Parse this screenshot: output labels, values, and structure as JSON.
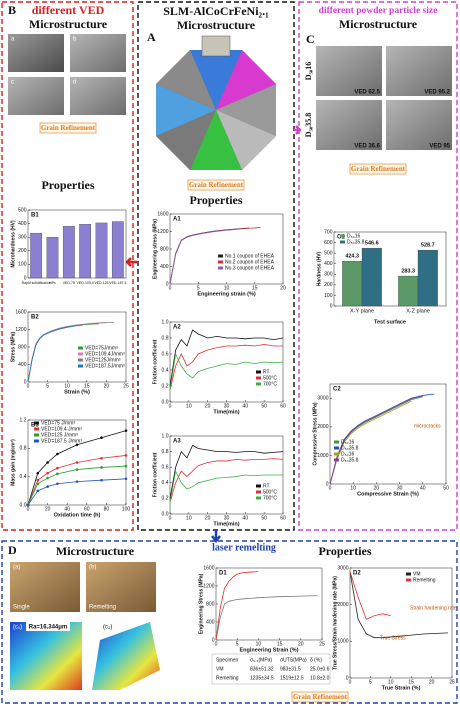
{
  "panels": {
    "B": {
      "label": "B",
      "heading": "different VED",
      "micro": "Microstructure",
      "images": [
        "a",
        "b",
        "c",
        "d"
      ],
      "refinement": "Grain Refinement",
      "properties": "Properties"
    },
    "A": {
      "label": "A",
      "title": "SLM-AlCoCrFeNi₂.₁",
      "micro": "Microstructure",
      "refinement": "Grain Refinement",
      "properties": "Properties"
    },
    "C": {
      "label": "C",
      "heading": "different powder particle size",
      "micro": "Microstructure",
      "rows": [
        "D₅₀16",
        "D₅₀35.8"
      ],
      "veds": [
        "VED 62.5",
        "VED 95.2",
        "VED 36.6",
        "VED 95"
      ],
      "refinement": "Grain Refinement"
    },
    "D": {
      "label": "D",
      "heading": "laser remelting",
      "micro": "Microstructure",
      "properties": "Properties",
      "images": [
        "(a)",
        "(b)",
        "(c₁)",
        "(c₂)"
      ],
      "image_notes": [
        "Single",
        "Remelting"
      ],
      "roughness": "Ra=16.344μm",
      "refinement": "Grain Refinement",
      "table": {
        "header": [
          "Specimen",
          "σ₀.₂(MPa)",
          "σUTS(MPa)",
          "δ (%)"
        ],
        "rows": [
          [
            "VM",
            "836±51.32",
            "983±31.5",
            "25.0±0.6"
          ],
          [
            "Remelting",
            "1235±34.5",
            "1519±12.5",
            "10.8±2.0"
          ]
        ]
      }
    }
  },
  "charts": [
    {
      "label": "B1",
      "type": "bar",
      "ylabel": "Microhardness (HV)",
      "categories": [
        "Rapid solidification",
        "HPs",
        "VED-75",
        "VED-109.4",
        "VED-125",
        "VED-187.5"
      ],
      "series": [
        {
          "color": "#8a7fd0",
          "values": [
            330,
            300,
            380,
            395,
            405,
            415
          ]
        }
      ],
      "ylim": [
        0,
        500
      ],
      "yticks": [
        0,
        100,
        200,
        300,
        400,
        500
      ]
    },
    {
      "label": "B2",
      "type": "line",
      "xlabel": "Strain (%)",
      "ylabel": "Stress (MPa)",
      "x": [
        0,
        1,
        2,
        3,
        4,
        6,
        8,
        10,
        12,
        14,
        16,
        18,
        20,
        22
      ],
      "xlim": [
        0,
        25
      ],
      "xticks": [
        0,
        5,
        10,
        15,
        20,
        25
      ],
      "ylim": [
        0,
        1600
      ],
      "yticks": [
        0,
        400,
        800,
        1200,
        1600
      ],
      "series": [
        {
          "name": "VED=75J/mm³",
          "color": "#2ca02c",
          "values": [
            0,
            500,
            850,
            1000,
            1080,
            1160,
            1220,
            1260,
            1290,
            1310,
            1320,
            1330,
            null,
            null
          ]
        },
        {
          "name": "VED=109.4J/mm³",
          "color": "#e377c2",
          "values": [
            0,
            520,
            870,
            1010,
            1090,
            1170,
            1230,
            1270,
            1300,
            1320,
            1340,
            1350,
            1360,
            null
          ]
        },
        {
          "name": "VED=125J/mm³",
          "color": "#7f7f7f",
          "values": [
            0,
            510,
            860,
            1000,
            1085,
            1165,
            1225,
            1265,
            1295,
            1315,
            1330,
            1345,
            1355,
            1365
          ]
        },
        {
          "name": "VED=187.5J/mm³",
          "color": "#1f77b4",
          "values": [
            0,
            490,
            840,
            990,
            1070,
            1150,
            1210,
            1250,
            1280,
            1300,
            null,
            null,
            null,
            null
          ]
        }
      ]
    },
    {
      "label": "B3",
      "type": "line",
      "markers": true,
      "xlabel": "Oxidation time (h)",
      "ylabel": "Mass gain (mg/cm²)",
      "x": [
        0,
        10,
        20,
        30,
        50,
        75,
        100
      ],
      "xlim": [
        0,
        100
      ],
      "xticks": [
        0,
        20,
        40,
        60,
        80,
        100
      ],
      "ylim": [
        0,
        1.2
      ],
      "yticks": [
        {
          "value": 0,
          "label": "0.0"
        },
        0.4,
        0.8,
        1.2
      ],
      "series": [
        {
          "name": "VED=75 J/mm³",
          "color": "#111111",
          "values": [
            0,
            0.45,
            0.6,
            0.72,
            0.85,
            0.95,
            1.05
          ]
        },
        {
          "name": "VED=109.4 J/mm³",
          "color": "#e03030",
          "values": [
            0,
            0.35,
            0.45,
            0.52,
            0.6,
            0.66,
            0.7
          ]
        },
        {
          "name": "VED=125 J/mm³",
          "color": "#2ca02c",
          "values": [
            0,
            0.3,
            0.38,
            0.44,
            0.5,
            0.53,
            0.55
          ]
        },
        {
          "name": "VED=187.5 J/mm³",
          "color": "#1f55c4",
          "values": [
            0,
            0.2,
            0.26,
            0.3,
            0.33,
            0.35,
            0.37
          ]
        }
      ]
    },
    {
      "label": "A1",
      "type": "line",
      "xlabel": "Engineering strain (%)",
      "ylabel": "Engineering stress (MPa)",
      "x": [
        0,
        1,
        2,
        3,
        4,
        6,
        8,
        10,
        12,
        14,
        16
      ],
      "xlim": [
        0,
        20
      ],
      "xticks": [
        0,
        5,
        10,
        15,
        20
      ],
      "ylim": [
        0,
        1600
      ],
      "yticks": [
        0,
        400,
        800,
        1200,
        1600
      ],
      "series": [
        {
          "name": "No.1 coupon of EHEA",
          "color": "#222222",
          "values": [
            0,
            700,
            1000,
            1080,
            1120,
            1170,
            1210,
            1240,
            1260,
            1280,
            null
          ]
        },
        {
          "name": "No.2 coupon of EHEA",
          "color": "#d03030",
          "values": [
            0,
            680,
            990,
            1075,
            1115,
            1165,
            1205,
            1235,
            1255,
            1275,
            1290
          ]
        },
        {
          "name": "No.3 coupon of EHEA",
          "color": "#8a5ab0",
          "values": [
            0,
            690,
            995,
            1070,
            1110,
            1160,
            1200,
            1230,
            1250,
            null,
            null
          ]
        }
      ]
    },
    {
      "label": "A2",
      "type": "line",
      "xlabel": "Time(min)",
      "ylabel": "Friction coefficient",
      "x": [
        0,
        3,
        6,
        9,
        12,
        15,
        20,
        25,
        30,
        35,
        40,
        45,
        50,
        55,
        60
      ],
      "xlim": [
        0,
        60
      ],
      "xticks": [
        0,
        10,
        20,
        30,
        40,
        50,
        60
      ],
      "ylim": [
        0,
        1
      ],
      "yticks": [
        {
          "value": 0,
          "label": "0.0"
        },
        0.2,
        0.4,
        0.6,
        0.8,
        {
          "value": 1,
          "label": "1.0"
        }
      ],
      "series": [
        {
          "name": "RT",
          "color": "#111111",
          "values": [
            0.2,
            0.65,
            0.78,
            0.7,
            0.9,
            0.85,
            0.8,
            0.82,
            0.8,
            0.8,
            0.79,
            0.8,
            0.8,
            0.78,
            0.8
          ]
        },
        {
          "name": "500°C",
          "color": "#e03030",
          "values": [
            0.15,
            0.45,
            0.6,
            0.45,
            0.5,
            0.6,
            0.65,
            0.68,
            0.7,
            0.7,
            0.71,
            0.7,
            0.72,
            0.7,
            0.7
          ]
        },
        {
          "name": "700°C",
          "color": "#3cb043",
          "values": [
            0.15,
            0.6,
            0.45,
            0.35,
            0.3,
            0.38,
            0.42,
            0.45,
            0.48,
            0.47,
            0.5,
            0.48,
            0.5,
            0.49,
            0.5
          ]
        }
      ]
    },
    {
      "label": "A3",
      "type": "line",
      "xlabel": "Time(min)",
      "ylabel": "Friction coefficient",
      "x": [
        0,
        3,
        6,
        9,
        12,
        15,
        20,
        25,
        30,
        35,
        40,
        45,
        50,
        55,
        60
      ],
      "xlim": [
        0,
        60
      ],
      "xticks": [
        0,
        10,
        20,
        30,
        40,
        50,
        60
      ],
      "ylim": [
        0,
        1
      ],
      "yticks": [
        {
          "value": 0,
          "label": "0.0"
        },
        0.2,
        0.4,
        0.6,
        0.8,
        {
          "value": 1,
          "label": "1.0"
        }
      ],
      "series": [
        {
          "name": "RT",
          "color": "#111111",
          "values": [
            0.2,
            0.6,
            0.8,
            0.72,
            0.88,
            0.84,
            0.82,
            0.8,
            0.8,
            0.79,
            0.8,
            0.8,
            0.78,
            0.79,
            0.8
          ]
        },
        {
          "name": "500°C",
          "color": "#e03030",
          "values": [
            0.15,
            0.4,
            0.55,
            0.48,
            0.55,
            0.62,
            0.66,
            0.68,
            0.68,
            0.7,
            0.69,
            0.7,
            0.7,
            0.71,
            0.7
          ]
        },
        {
          "name": "700°C",
          "color": "#3cb043",
          "values": [
            0.15,
            0.55,
            0.4,
            0.32,
            0.35,
            0.4,
            0.43,
            0.46,
            0.47,
            0.48,
            0.5,
            0.49,
            0.5,
            0.5,
            0.5
          ]
        }
      ]
    },
    {
      "label": "C1",
      "type": "bar",
      "show_values": true,
      "xlabel": "Test surface",
      "ylabel": "Hardness (HV)",
      "categories": [
        "X-Y plane",
        "X-Z plane"
      ],
      "ylim": [
        0,
        700
      ],
      "yticks": [
        0,
        100,
        200,
        300,
        400,
        500,
        600,
        700
      ],
      "series": [
        {
          "name": "D₅₀16",
          "color": "#5b9a68",
          "values": [
            424.3,
            283.3
          ]
        },
        {
          "name": "D₅₀35.8",
          "color": "#2f6f86",
          "values": [
            546.6,
            528.7
          ]
        }
      ]
    },
    {
      "label": "C2",
      "type": "line",
      "xlabel": "Compressive Strain (%)",
      "ylabel": "Compressive Stress (MPa)",
      "annotations": [
        "microcracks"
      ],
      "x": [
        0,
        3,
        6,
        9,
        12,
        15,
        20,
        25,
        30,
        35,
        40,
        45
      ],
      "xlim": [
        0,
        50
      ],
      "xticks": [
        0,
        10,
        20,
        30,
        40,
        50
      ],
      "ylim": [
        0,
        3500
      ],
      "yticks": [
        0,
        1000,
        2000,
        3000
      ],
      "series": [
        {
          "name": "D₅₀16",
          "color": "#3a9a3a",
          "values": [
            0,
            900,
            1500,
            1800,
            2000,
            2150,
            2350,
            2550,
            2750,
            2950,
            3050,
            null
          ]
        },
        {
          "name": "D₅₀35.8",
          "color": "#2050b0",
          "values": [
            0,
            950,
            1550,
            1850,
            2050,
            2200,
            2400,
            2600,
            2800,
            3000,
            3100,
            3150
          ]
        },
        {
          "name": "D₅₀16",
          "color": "#a0a020",
          "values": [
            0,
            850,
            1450,
            1750,
            1950,
            2100,
            2300,
            2500,
            2700,
            2900,
            null,
            null
          ]
        },
        {
          "name": "D₅₀35.8",
          "color": "#8a3aa0",
          "values": [
            0,
            920,
            1520,
            1820,
            2020,
            2180,
            2380,
            2580,
            2780,
            2980,
            3080,
            null
          ]
        }
      ]
    },
    {
      "label": "D1",
      "type": "line",
      "xlabel": "Engineering Strain (%)",
      "ylabel": "Engineering Stress (MPa)",
      "x": [
        0,
        1,
        2,
        3,
        4,
        5,
        6,
        8,
        10,
        12,
        14,
        16,
        18,
        20,
        22,
        24
      ],
      "xlim": [
        0,
        25
      ],
      "xticks": [
        0,
        5,
        10,
        15,
        20,
        25
      ],
      "ylim": [
        0,
        1600
      ],
      "yticks": [
        0,
        400,
        800,
        1200,
        1600
      ],
      "series": [
        {
          "color": "#777777",
          "values": [
            0,
            500,
            800,
            860,
            880,
            900,
            910,
            925,
            940,
            950,
            960,
            965,
            970,
            975,
            980,
            983
          ]
        },
        {
          "color": "#e03030",
          "values": [
            0,
            700,
            1150,
            1300,
            1400,
            1460,
            1490,
            1510,
            1519,
            null,
            null,
            null,
            null,
            null,
            null,
            null
          ]
        }
      ]
    },
    {
      "label": "D2",
      "type": "line",
      "xlabel": "True Strain (%)",
      "ylabel": "True Stress/Strain hardening rate (MPa)",
      "annotations": [
        "Strain hardening rate",
        "True Stress"
      ],
      "x": [
        0,
        2,
        4,
        6,
        8,
        10,
        12,
        14,
        16,
        18,
        20,
        22,
        24
      ],
      "xlim": [
        0,
        25
      ],
      "xticks": [
        0,
        5,
        10,
        15,
        20,
        25
      ],
      "ylim": [
        0,
        3000
      ],
      "yticks": [
        0,
        1000,
        2000,
        3000
      ],
      "series": [
        {
          "name": "VM",
          "color": "#222222",
          "values": [
            2900,
            1600,
            1200,
            1100,
            1100,
            1120,
            1140,
            1160,
            1180,
            1200,
            1210,
            1220,
            1230
          ]
        },
        {
          "name": "Remelting",
          "color": "#e03030",
          "values": [
            2900,
            2200,
            1600,
            1700,
            1750,
            1700,
            null,
            null,
            null,
            null,
            null,
            null,
            null
          ]
        }
      ]
    }
  ]
}
